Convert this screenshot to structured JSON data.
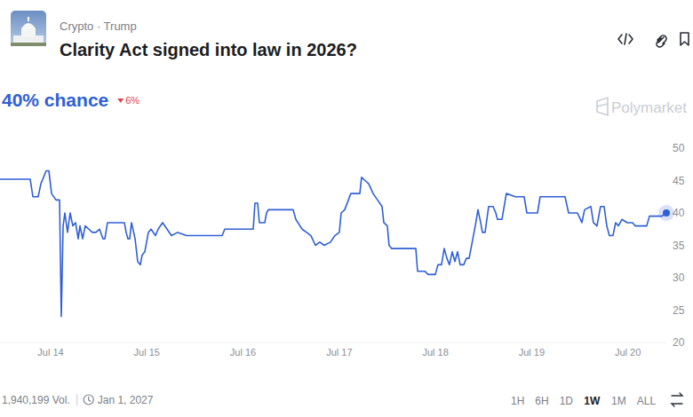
{
  "header": {
    "category": "Crypto · Trump",
    "title": "Clarity Act signed into law in 2026?",
    "chance": "40% chance",
    "change": "6%",
    "watermark": "Polymarket"
  },
  "chart_data": {
    "type": "line",
    "color": "#2f5fd6",
    "grid": false,
    "x": [
      13.474,
      13.788,
      13.816,
      13.871,
      13.899,
      13.954,
      13.982,
      14.01,
      14.056,
      14.093,
      14.111,
      14.13,
      14.148,
      14.176,
      14.203,
      14.231,
      14.259,
      14.287,
      14.305,
      14.333,
      14.36,
      14.397,
      14.434,
      14.471,
      14.508,
      14.545,
      14.564,
      14.591,
      14.767,
      14.785,
      14.804,
      14.822,
      14.841,
      14.878,
      14.905,
      14.933,
      14.951,
      14.979,
      15.016,
      15.044,
      15.09,
      15.118,
      15.164,
      15.21,
      15.256,
      15.321,
      15.413,
      15.783,
      15.81,
      16.106,
      16.124,
      16.152,
      16.17,
      16.226,
      16.244,
      16.263,
      16.355,
      16.521,
      16.549,
      16.614,
      16.66,
      16.706,
      16.752,
      16.798,
      16.844,
      16.909,
      16.955,
      17.001,
      17.02,
      17.057,
      17.121,
      17.214,
      17.232,
      17.269,
      17.306,
      17.352,
      17.398,
      17.445,
      17.463,
      17.5,
      17.518,
      17.546,
      17.796,
      17.814,
      17.888,
      17.925,
      17.999,
      18.026,
      18.063,
      18.091,
      18.119,
      18.146,
      18.174,
      18.202,
      18.23,
      18.257,
      18.294,
      18.322,
      18.35,
      18.414,
      18.442,
      18.47,
      18.488,
      18.516,
      18.553,
      18.599,
      18.627,
      18.645,
      18.691,
      18.737,
      18.83,
      18.922,
      18.95,
      19.061,
      19.088,
      19.347,
      19.384,
      19.476,
      19.522,
      19.55,
      19.615,
      19.642,
      19.679,
      19.716,
      19.753,
      19.781,
      19.808,
      19.845,
      19.873,
      19.901,
      19.938,
      19.993,
      20.049,
      20.076,
      20.196,
      20.224,
      20.353,
      20.4
    ],
    "values": [
      45.2,
      45.2,
      42.5,
      42.5,
      44.5,
      46.5,
      46.5,
      43,
      42,
      42,
      24,
      38,
      40,
      37,
      40,
      38,
      38.5,
      36,
      38,
      36,
      38,
      37.5,
      37,
      37,
      37.5,
      36,
      36,
      38.5,
      38.5,
      37,
      36,
      36,
      38.5,
      36,
      32.5,
      32,
      33.5,
      34,
      37,
      37.5,
      36.5,
      37.5,
      38.5,
      37.5,
      36.5,
      37,
      36.5,
      36.5,
      37.5,
      37.5,
      41.5,
      41.5,
      38.5,
      38.5,
      40,
      40.5,
      40.5,
      40.5,
      39,
      37.5,
      37,
      36.5,
      35,
      35.5,
      35,
      35.5,
      36.5,
      37,
      40,
      40.5,
      43,
      43,
      45.5,
      45,
      44.5,
      43,
      42,
      41,
      38.5,
      38,
      35,
      34.5,
      34.5,
      31,
      31,
      30.5,
      30.5,
      32,
      32,
      34.5,
      33,
      32,
      34,
      32.5,
      34,
      32,
      32,
      33,
      33,
      38,
      40.5,
      38.5,
      37,
      37,
      41,
      41,
      40,
      39,
      39,
      43,
      42.5,
      42.5,
      40,
      40,
      42.5,
      42.5,
      40,
      40,
      38.5,
      40.5,
      41,
      38.5,
      38,
      41,
      41,
      38,
      36.5,
      36.5,
      38.5,
      38,
      39,
      38.5,
      38.5,
      38,
      38,
      39.5,
      39.5,
      40
    ],
    "xlim": [
      13.474,
      20.4
    ],
    "xticks": [
      {
        "value": 14,
        "label": "Jul 14"
      },
      {
        "value": 15,
        "label": "Jul 15"
      },
      {
        "value": 16,
        "label": "Jul 16"
      },
      {
        "value": 17,
        "label": "Jul 17"
      },
      {
        "value": 18,
        "label": "Jul 18"
      },
      {
        "value": 19,
        "label": "Jul 19"
      },
      {
        "value": 20,
        "label": "Jul 20"
      }
    ],
    "ylim": [
      20,
      50
    ],
    "yticks": [
      20,
      25,
      30,
      35,
      40,
      45,
      50
    ]
  },
  "footer": {
    "volume": "1,940,199 Vol.",
    "end_date": "Jan 1, 2027",
    "timeframes": {
      "options": [
        "1H",
        "6H",
        "1D",
        "1W",
        "1M",
        "ALL"
      ],
      "selected": "1W"
    }
  }
}
